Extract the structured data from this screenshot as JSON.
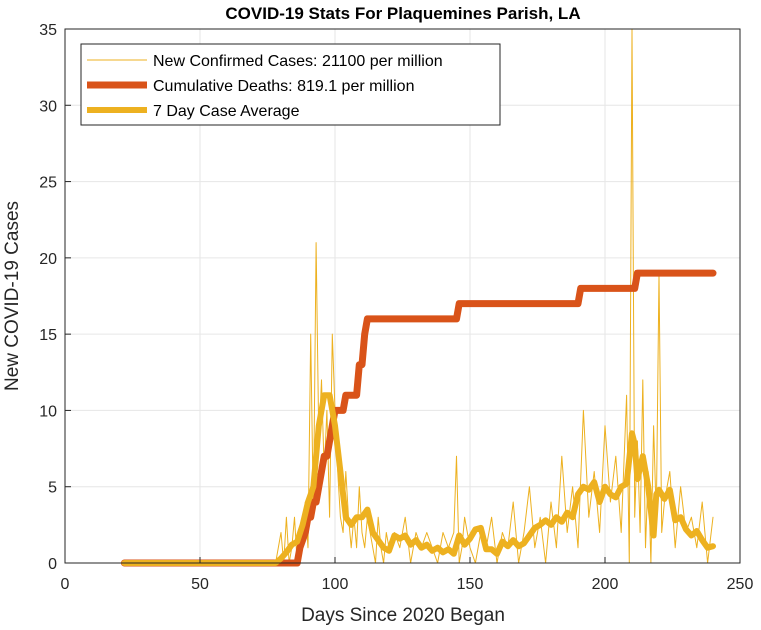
{
  "chart_data": {
    "type": "line",
    "title": "COVID-19 Stats For Plaquemines Parish, LA",
    "xlabel": "Days Since 2020 Began",
    "ylabel": "New COVID-19 Cases",
    "xlim": [
      0,
      250
    ],
    "ylim": [
      0,
      35
    ],
    "xticks": [
      0,
      50,
      100,
      150,
      200,
      250
    ],
    "yticks": [
      0,
      5,
      10,
      15,
      20,
      25,
      30,
      35
    ],
    "grid": true,
    "legend_position": "top-left",
    "series": [
      {
        "name": "New Confirmed Cases: 21100 per million",
        "color": "#EDB120",
        "style": "thin",
        "x": [
          22,
          30,
          40,
          50,
          60,
          70,
          78,
          80,
          81,
          82,
          83,
          84,
          85,
          86,
          87,
          88,
          89,
          90,
          91,
          92,
          93,
          94,
          95,
          96,
          97,
          98,
          99,
          100,
          101,
          102,
          103,
          104,
          105,
          106,
          107,
          108,
          109,
          110,
          111,
          112,
          113,
          114,
          115,
          116,
          117,
          118,
          119,
          120,
          122,
          124,
          126,
          128,
          130,
          132,
          134,
          136,
          138,
          140,
          142,
          144,
          145,
          146,
          147,
          148,
          150,
          152,
          154,
          156,
          158,
          160,
          162,
          164,
          166,
          168,
          170,
          172,
          174,
          176,
          178,
          180,
          182,
          184,
          186,
          188,
          190,
          192,
          194,
          196,
          198,
          200,
          202,
          204,
          206,
          208,
          209,
          210,
          211,
          212,
          213,
          214,
          215,
          216,
          217,
          218,
          219,
          220,
          221,
          222,
          224,
          226,
          228,
          230,
          232,
          234,
          236,
          238,
          240
        ],
        "values": [
          0,
          0,
          0,
          0,
          0,
          0,
          0,
          2,
          0,
          3,
          0,
          1,
          3,
          0,
          2,
          2,
          4,
          1,
          15,
          3,
          21,
          8,
          12,
          6,
          10,
          3,
          15,
          10,
          6,
          3,
          2,
          6,
          3,
          1,
          3,
          1,
          5,
          2,
          1,
          3,
          2,
          1,
          0,
          3,
          1,
          0,
          2,
          1,
          2,
          1,
          3,
          0,
          2,
          1,
          2,
          1,
          0,
          2,
          1,
          2,
          7,
          0,
          1,
          3,
          1,
          0,
          2,
          1,
          3,
          0,
          2,
          1,
          4,
          0,
          2,
          5,
          1,
          3,
          0,
          4,
          1,
          7,
          2,
          5,
          1,
          10,
          3,
          6,
          2,
          9,
          4,
          7,
          2,
          11,
          0,
          35,
          3,
          8,
          2,
          12,
          1,
          6,
          0,
          9,
          3,
          19,
          2,
          4,
          6,
          1,
          5,
          2,
          3,
          1,
          4,
          0,
          3
        ]
      },
      {
        "name": "Cumulative Deaths: 819.1 per million",
        "color": "#D95319",
        "style": "thick",
        "x": [
          22,
          86,
          87,
          89,
          90,
          91,
          92,
          93,
          94,
          95,
          96,
          97,
          98,
          99,
          100,
          101,
          102,
          103,
          104,
          105,
          106,
          107,
          108,
          109,
          110,
          111,
          112,
          113,
          114,
          115,
          145,
          146,
          147,
          190,
          191,
          192,
          210,
          211,
          212,
          213,
          240
        ],
        "values": [
          0,
          0,
          1,
          2,
          3,
          3,
          4,
          4,
          5,
          6,
          7,
          7,
          8,
          9,
          10,
          10,
          10,
          10,
          11,
          11,
          11,
          11,
          11,
          13,
          13,
          15,
          16,
          16,
          16,
          16,
          16,
          17,
          17,
          17,
          18,
          18,
          18,
          18,
          19,
          19,
          19
        ]
      },
      {
        "name": "7 Day Case Average",
        "color": "#EDB120",
        "style": "medium",
        "x": [
          22,
          40,
          60,
          78,
          80,
          82,
          84,
          86,
          88,
          90,
          92,
          94,
          96,
          98,
          100,
          102,
          104,
          106,
          108,
          110,
          112,
          114,
          116,
          118,
          120,
          122,
          124,
          126,
          128,
          130,
          132,
          134,
          136,
          138,
          140,
          142,
          144,
          146,
          148,
          150,
          152,
          154,
          156,
          158,
          160,
          162,
          164,
          166,
          168,
          170,
          172,
          174,
          176,
          178,
          180,
          182,
          184,
          186,
          188,
          190,
          192,
          194,
          196,
          198,
          200,
          202,
          204,
          206,
          208,
          210,
          211,
          212,
          214,
          216,
          218,
          219,
          220,
          222,
          224,
          226,
          228,
          230,
          232,
          234,
          236,
          238,
          240
        ],
        "values": [
          0,
          0,
          0,
          0,
          0.3,
          0.7,
          1.2,
          1.4,
          2.5,
          4,
          5,
          9,
          11,
          11,
          9,
          6,
          3,
          2.5,
          3,
          3,
          3.5,
          2,
          1.5,
          1,
          0.8,
          1.8,
          1.6,
          1.8,
          1.2,
          1.5,
          1,
          1.2,
          0.8,
          1,
          0.7,
          0.9,
          0.6,
          1.8,
          1.2,
          1.6,
          2.2,
          2.3,
          0.9,
          0.9,
          0.6,
          1.4,
          1.1,
          1.5,
          1.1,
          1.3,
          1.8,
          2.3,
          2.5,
          2.8,
          2.5,
          3,
          2.7,
          3.3,
          3,
          4.5,
          5,
          4.8,
          5.3,
          4,
          5,
          4.5,
          4.3,
          5,
          5.2,
          8.5,
          7.8,
          5.5,
          7,
          5,
          1.8,
          4.5,
          4.8,
          4.2,
          4.8,
          2.8,
          3,
          2.2,
          1.8,
          2.1,
          1.5,
          1,
          1.1
        ]
      }
    ]
  }
}
